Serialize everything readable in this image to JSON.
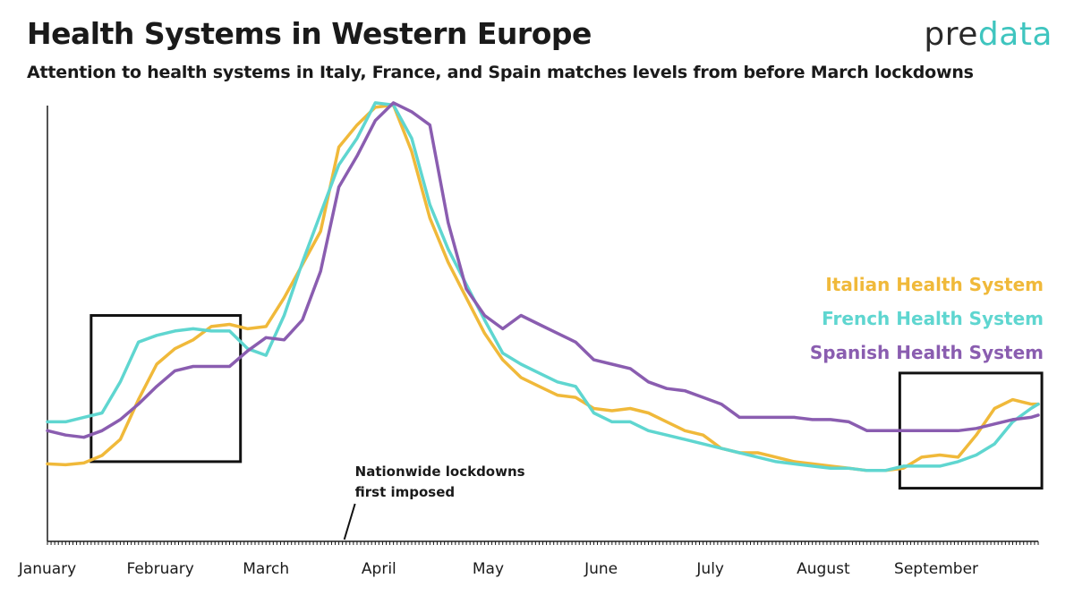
{
  "header": {
    "title": "Health Systems in Western Europe",
    "subtitle": "Attention to health systems in Italy, France, and Spain matches levels from before March lockdowns",
    "brand_pre": "pre",
    "brand_data": "data"
  },
  "colors": {
    "italy": "#f0b93a",
    "france": "#5fd6d0",
    "spain": "#8a5db0",
    "axis": "#1a1a1a",
    "brand_accent": "#3fc5bf"
  },
  "chart_data": {
    "type": "line",
    "title": "Health Systems in Western Europe",
    "xlabel": "",
    "ylabel": "",
    "x_unit": "day of year (2020), 0 = January 1",
    "xlim": [
      0,
      272
    ],
    "ylim": [
      0,
      100
    ],
    "grid": false,
    "legend_position": "right",
    "tick_labels": [
      {
        "label": "January",
        "day": 0
      },
      {
        "label": "February",
        "day": 31
      },
      {
        "label": "March",
        "day": 60
      },
      {
        "label": "April",
        "day": 91
      },
      {
        "label": "May",
        "day": 121
      },
      {
        "label": "June",
        "day": 152
      },
      {
        "label": "July",
        "day": 182
      },
      {
        "label": "August",
        "day": 213
      },
      {
        "label": "September",
        "day": 244
      }
    ],
    "series": [
      {
        "name": "Italian Health System",
        "color": "#f0b93a",
        "x": [
          0,
          5,
          10,
          15,
          20,
          25,
          30,
          35,
          40,
          45,
          50,
          55,
          60,
          65,
          70,
          75,
          80,
          85,
          90,
          95,
          100,
          105,
          110,
          115,
          120,
          125,
          130,
          135,
          140,
          145,
          150,
          155,
          160,
          165,
          170,
          175,
          180,
          185,
          190,
          195,
          200,
          205,
          210,
          215,
          220,
          225,
          230,
          235,
          240,
          245,
          250,
          255,
          260,
          265,
          270,
          272
        ],
        "y": [
          17.5,
          17.3,
          17.7,
          19.4,
          23,
          32,
          40,
          43.5,
          45.5,
          48.5,
          49,
          48,
          48.5,
          55,
          62.5,
          70,
          89,
          94,
          98,
          98.5,
          88,
          73,
          63,
          55,
          47,
          41,
          37,
          35,
          33,
          32.5,
          30,
          29.5,
          30,
          29,
          27,
          25,
          24,
          21,
          20,
          20,
          19,
          18,
          17.5,
          17,
          16.5,
          16,
          16,
          16.5,
          19,
          19.5,
          19,
          24,
          30,
          32,
          31,
          31
        ]
      },
      {
        "name": "French Health System",
        "color": "#5fd6d0",
        "x": [
          0,
          5,
          10,
          15,
          20,
          25,
          30,
          35,
          40,
          45,
          50,
          55,
          60,
          65,
          70,
          75,
          80,
          85,
          90,
          95,
          100,
          105,
          110,
          115,
          120,
          125,
          130,
          135,
          140,
          145,
          150,
          155,
          160,
          165,
          170,
          175,
          180,
          185,
          190,
          195,
          200,
          205,
          210,
          215,
          220,
          225,
          230,
          235,
          240,
          245,
          250,
          255,
          260,
          265,
          270,
          272
        ],
        "y": [
          27,
          27,
          28,
          29,
          36,
          45,
          46.5,
          47.5,
          48,
          47.5,
          47.5,
          43.5,
          42,
          51,
          63,
          74,
          85,
          91,
          99,
          98.5,
          91,
          76,
          66,
          58,
          50,
          42.5,
          40,
          38,
          36,
          35,
          29,
          27,
          27,
          25,
          24,
          23,
          22,
          21,
          20,
          19,
          18,
          17.5,
          17,
          16.5,
          16.5,
          16,
          16,
          17,
          17,
          17,
          18,
          19.5,
          22,
          27,
          30,
          31
        ]
      },
      {
        "name": "Spanish Health System",
        "color": "#8a5db0",
        "x": [
          0,
          5,
          10,
          15,
          20,
          25,
          30,
          35,
          40,
          45,
          50,
          55,
          60,
          65,
          70,
          75,
          80,
          85,
          90,
          95,
          100,
          105,
          110,
          115,
          120,
          125,
          130,
          135,
          140,
          145,
          150,
          155,
          160,
          165,
          170,
          175,
          180,
          185,
          190,
          195,
          200,
          205,
          210,
          215,
          220,
          225,
          230,
          235,
          240,
          245,
          250,
          255,
          260,
          265,
          270,
          272
        ],
        "y": [
          25,
          24,
          23.5,
          25,
          27.5,
          31,
          35,
          38.5,
          39.5,
          39.5,
          39.5,
          43,
          46,
          45.5,
          50,
          61,
          80,
          87,
          95,
          99,
          97,
          94,
          72,
          57,
          51,
          48,
          51,
          49,
          47,
          45,
          41,
          40,
          39,
          36,
          34.5,
          34,
          32.5,
          31,
          28,
          28,
          28,
          28,
          27.5,
          27.5,
          27,
          25,
          25,
          25,
          25,
          25,
          25,
          25.5,
          26.5,
          27.5,
          28,
          28.5
        ]
      }
    ],
    "annotations": [
      {
        "text_line1": "Nationwide lockdowns",
        "text_line2": "first imposed",
        "day": 81
      }
    ],
    "highlight_boxes": [
      {
        "from_day": 12,
        "to_day": 53,
        "y_min": 18,
        "y_max": 51
      },
      {
        "from_day": 234,
        "to_day": 273,
        "y_min": 12,
        "y_max": 38
      }
    ]
  }
}
